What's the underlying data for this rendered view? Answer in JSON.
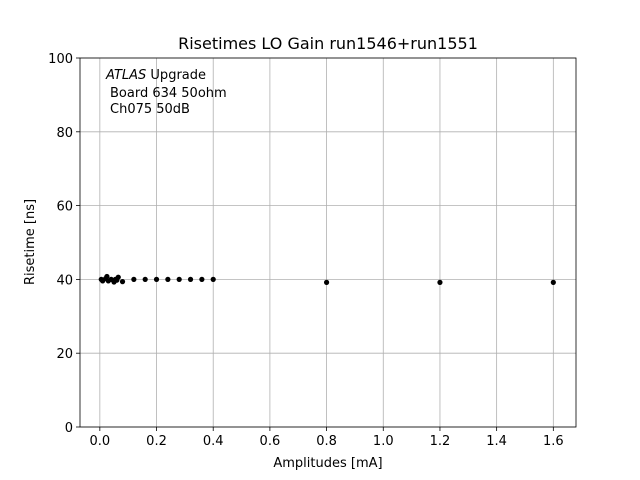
{
  "chart_data": {
    "type": "scatter",
    "title": "Risetimes LO Gain run1546+run1551",
    "xlabel": "Amplitudes [mA]",
    "ylabel": "Risetime [ns]",
    "annotation": [
      "ATLAS",
      "Upgrade",
      "Board 634 50ohm",
      "Ch075 50dB"
    ],
    "x": [
      0.005,
      0.01,
      0.02,
      0.025,
      0.03,
      0.04,
      0.05,
      0.055,
      0.06,
      0.065,
      0.08,
      0.12,
      0.16,
      0.2,
      0.24,
      0.28,
      0.32,
      0.36,
      0.4,
      0.8,
      1.2,
      1.6
    ],
    "values": [
      40,
      39.6,
      40.2,
      40.8,
      39.6,
      40,
      39.3,
      40,
      39.8,
      40.6,
      39.4,
      40,
      40,
      40,
      40,
      40,
      40,
      40,
      40,
      39.2,
      39.2,
      39.2
    ],
    "color": "#000000",
    "xlim": [
      -0.07,
      1.68
    ],
    "ylim": [
      0,
      100
    ],
    "xticks": [
      {
        "value": 0,
        "label": "0.0"
      },
      {
        "value": 0.2,
        "label": "0.2"
      },
      {
        "value": 0.4,
        "label": "0.4"
      },
      {
        "value": 0.6,
        "label": "0.6"
      },
      {
        "value": 0.8,
        "label": "0.8"
      },
      {
        "value": 1.0,
        "label": "1.0"
      },
      {
        "value": 1.2,
        "label": "1.2"
      },
      {
        "value": 1.4,
        "label": "1.4"
      },
      {
        "value": 1.6,
        "label": "1.6"
      }
    ],
    "yticks": [
      0,
      20,
      40,
      60,
      80,
      100
    ],
    "grid": true
  }
}
